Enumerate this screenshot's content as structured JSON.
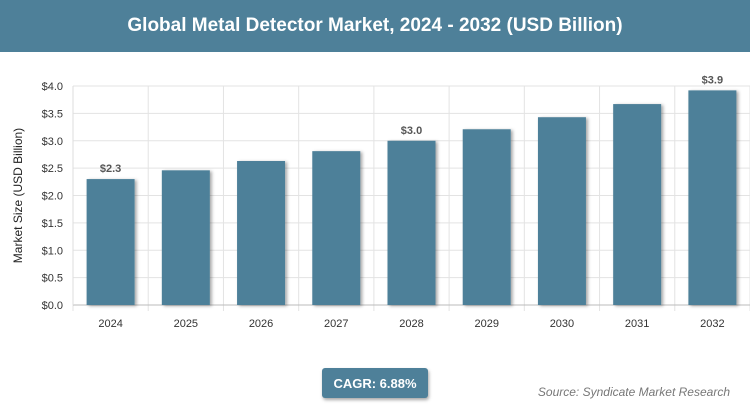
{
  "header": {
    "title": "Global Metal Detector Market, 2024 - 2032 (USD Billion)"
  },
  "chart_data": {
    "type": "bar",
    "categories": [
      "2024",
      "2025",
      "2026",
      "2027",
      "2028",
      "2029",
      "2030",
      "2031",
      "2032"
    ],
    "values": [
      2.3,
      2.46,
      2.63,
      2.81,
      3.0,
      3.21,
      3.43,
      3.67,
      3.92
    ],
    "data_labels": [
      {
        "index": 0,
        "text": "$2.3"
      },
      {
        "index": 4,
        "text": "$3.0"
      },
      {
        "index": 8,
        "text": "$3.9"
      }
    ],
    "title": "",
    "xlabel": "",
    "ylabel": "Market Size (USD Billion)",
    "ylim": [
      0,
      4.0
    ],
    "yticks": [
      0.0,
      0.5,
      1.0,
      1.5,
      2.0,
      2.5,
      3.0,
      3.5,
      4.0
    ],
    "ytick_labels": [
      "$0.0",
      "$0.5",
      "$1.0",
      "$1.5",
      "$2.0",
      "$2.5",
      "$3.0",
      "$3.5",
      "$4.0"
    ],
    "grid": true,
    "bar_color": "#4e8099"
  },
  "footer": {
    "cagr": "CAGR: 6.88%",
    "source": "Source: Syndicate Market Research"
  },
  "colors": {
    "accent": "#4e8099"
  }
}
